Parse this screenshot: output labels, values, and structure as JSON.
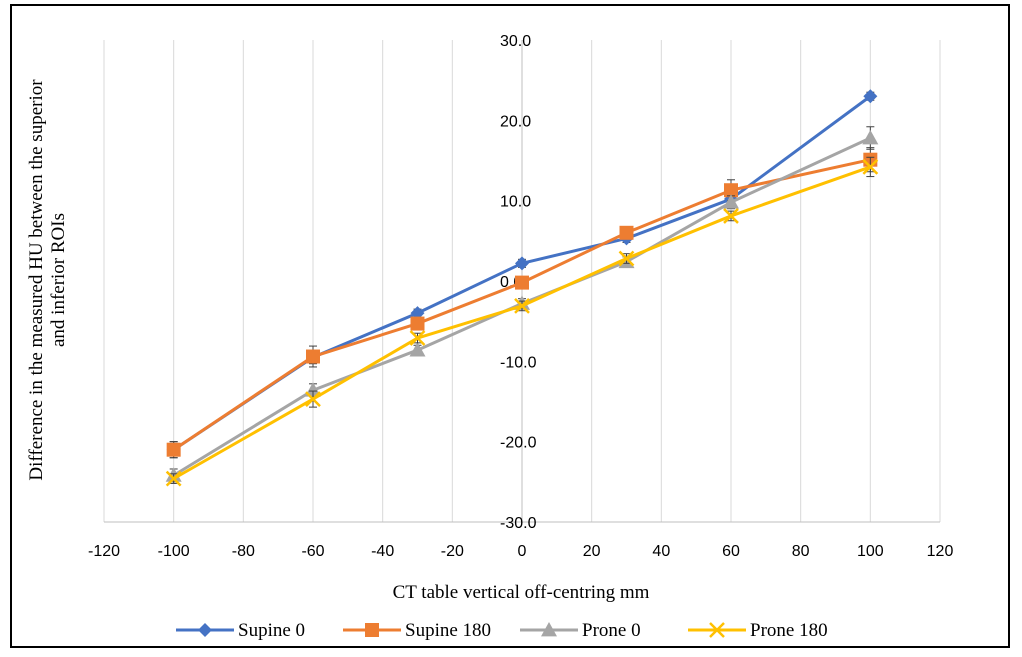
{
  "chart_data": {
    "type": "scatter",
    "title": "",
    "xlabel": "CT table vertical off-centring mm",
    "ylabel_lines": [
      "Difference in the measured HU between the superior",
      "and inferior ROIs"
    ],
    "xlim": [
      -120,
      120
    ],
    "ylim": [
      -30,
      30
    ],
    "x_ticks": [
      -120,
      -100,
      -80,
      -60,
      -40,
      -20,
      0,
      20,
      40,
      60,
      80,
      100,
      120
    ],
    "y_ticks": [
      -30,
      -20,
      -10,
      0,
      10,
      20,
      30
    ],
    "y_tick_labels": [
      "-30.0",
      "-20.0",
      "-10.0",
      "0.0",
      "10.0",
      "20.0",
      "30.0"
    ],
    "grid": "vertical",
    "legend_position": "bottom",
    "x": [
      -100,
      -60,
      -30,
      0,
      30,
      60,
      100
    ],
    "series": [
      {
        "name": "Supine 0",
        "marker": "diamond",
        "color": "#4472C4",
        "values": [
          -21.0,
          -9.5,
          -4.0,
          2.2,
          5.3,
          10.2,
          23.0
        ],
        "errors": [
          1.0,
          0.8,
          0.5,
          0.5,
          0.5,
          0.8,
          0.5
        ]
      },
      {
        "name": "Supine 180",
        "marker": "square",
        "color": "#ED7D31",
        "values": [
          -21.0,
          -9.4,
          -5.3,
          -0.2,
          6.0,
          11.3,
          15.1
        ],
        "errors": [
          1.0,
          1.3,
          0.6,
          0.5,
          0.5,
          1.3,
          1.5
        ]
      },
      {
        "name": "Prone 0",
        "marker": "triangle",
        "color": "#A5A5A5",
        "values": [
          -24.2,
          -13.6,
          -8.6,
          -2.8,
          2.4,
          9.8,
          17.8
        ],
        "errors": [
          0.8,
          0.8,
          0.6,
          0.6,
          0.6,
          0.8,
          1.4
        ]
      },
      {
        "name": "Prone 180",
        "marker": "x",
        "color": "#FFC000",
        "values": [
          -24.6,
          -14.7,
          -7.1,
          -3.1,
          2.8,
          8.1,
          14.2
        ],
        "errors": [
          0.6,
          1.0,
          0.6,
          0.6,
          0.6,
          0.6,
          1.2
        ]
      }
    ]
  }
}
